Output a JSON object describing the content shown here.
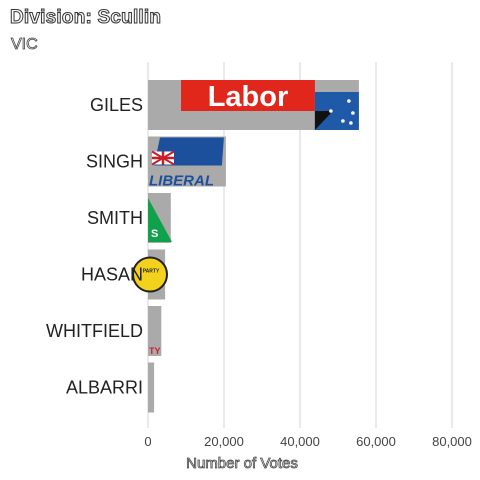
{
  "chart_data": {
    "type": "bar",
    "orientation": "horizontal",
    "title": "Division: Scullin",
    "subtitle": "VIC",
    "xlabel": "Number of Votes",
    "ylabel": "",
    "categories": [
      "GILES",
      "SINGH",
      "SMITH",
      "HASAN",
      "WHITFIELD",
      "ALBARRI"
    ],
    "values": [
      55500,
      20500,
      6000,
      4500,
      3500,
      1600
    ],
    "xlim": [
      0,
      80000
    ],
    "xticks": [
      0,
      20000,
      40000,
      60000,
      80000
    ],
    "xtick_labels": [
      "0",
      "20,000",
      "40,000",
      "60,000",
      "80,000"
    ],
    "grid": true,
    "bar_color": "#aaaaaa",
    "logos": [
      {
        "category": "GILES",
        "name": "labor-logo",
        "text": "Labor",
        "color": "#e1261c",
        "flag_color": "#1e5aa8"
      },
      {
        "category": "SINGH",
        "name": "liberal-logo",
        "text": "LIBERAL",
        "color": "#1c4f9c"
      },
      {
        "category": "SMITH",
        "name": "greens-logo",
        "text": "S",
        "color": "#10a14b"
      },
      {
        "category": "HASAN",
        "name": "party-seal-logo",
        "text": "PARTY",
        "color": "#f2d21c"
      },
      {
        "category": "WHITFIELD",
        "name": "party-red-logo",
        "text": "TY",
        "color": "#d0202e"
      }
    ]
  }
}
